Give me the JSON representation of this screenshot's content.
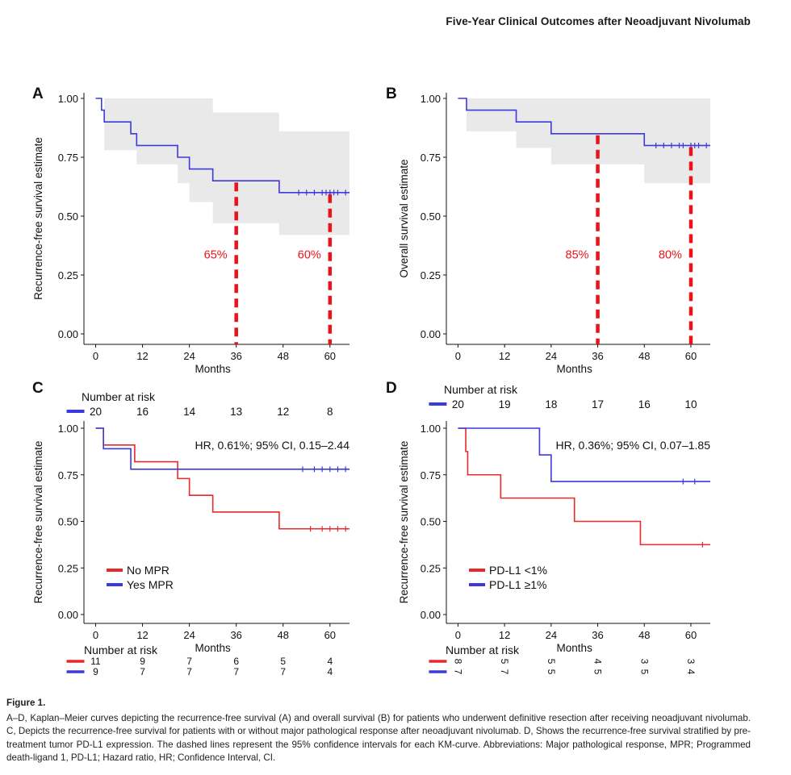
{
  "header": "Five-Year Clinical Outcomes after Neoadjuvant Nivolumab",
  "caption": {
    "figure_label": "Figure 1.",
    "text": "A–D, Kaplan–Meier curves depicting the recurrence-free survival (A) and overall survival (B) for patients who underwent definitive resection after receiving neoadjuvant nivolumab. C, Depicts the recurrence-free survival for patients with or without major pathological response after neoadjuvant nivolumab. D, Shows the recurrence-free survival stratified by pre-treatment tumor PD-L1 expression. The dashed lines represent the 95% confidence intervals for each KM-curve. Abbreviations: Major pathological response, MPR; Programmed death-ligand 1, PD-L1; Hazard ratio, HR; Confidence Interval, CI."
  },
  "colors": {
    "blue": "#3a3ae0",
    "red": "#e8282a",
    "ci": "#e9e9e9",
    "dash": "#e8141a"
  },
  "chart_data": [
    {
      "panel": "A",
      "type": "line",
      "xlabel": "Months",
      "ylabel": "Recurrence-free survival estimate",
      "xticks": [
        0,
        12,
        24,
        36,
        48,
        60
      ],
      "yticks": [
        "0.00",
        "0.25",
        "0.50",
        "0.75",
        "1.00"
      ],
      "xlim": [
        -3,
        65
      ],
      "ylim": [
        0,
        1
      ],
      "series": [
        {
          "color": "blue",
          "steps": [
            [
              0,
              1.0
            ],
            [
              1.5,
              0.95
            ],
            [
              2.2,
              0.9
            ],
            [
              9,
              0.85
            ],
            [
              10.5,
              0.8
            ],
            [
              21,
              0.75
            ],
            [
              24,
              0.7
            ],
            [
              30,
              0.65
            ],
            [
              47,
              0.6
            ],
            [
              65,
              0.6
            ]
          ],
          "censor": [
            52,
            54,
            56,
            58,
            59,
            60,
            61,
            62,
            64
          ],
          "ci_upper": [
            [
              0,
              1.0
            ],
            [
              2.2,
              1.0
            ],
            [
              10.5,
              1.0
            ],
            [
              30,
              0.98
            ],
            [
              30,
              0.94
            ],
            [
              47,
              0.94
            ],
            [
              47,
              0.86
            ],
            [
              65,
              0.86
            ]
          ],
          "ci_lower": [
            [
              0,
              1.0
            ],
            [
              2.2,
              0.78
            ],
            [
              10.5,
              0.72
            ],
            [
              21,
              0.64
            ],
            [
              24,
              0.56
            ],
            [
              30,
              0.47
            ],
            [
              47,
              0.42
            ],
            [
              65,
              0.42
            ]
          ]
        }
      ],
      "markers": [
        {
          "x": 36,
          "y": 0.65,
          "label": "65%"
        },
        {
          "x": 60,
          "y": 0.6,
          "label": "60%"
        }
      ]
    },
    {
      "panel": "B",
      "type": "line",
      "xlabel": "Months",
      "ylabel": "Overall survival estimate",
      "xticks": [
        0,
        12,
        24,
        36,
        48,
        60
      ],
      "yticks": [
        "0.00",
        "0.25",
        "0.50",
        "0.75",
        "1.00"
      ],
      "xlim": [
        -3,
        65
      ],
      "ylim": [
        0,
        1
      ],
      "series": [
        {
          "color": "blue",
          "steps": [
            [
              0,
              1.0
            ],
            [
              2.2,
              0.95
            ],
            [
              15,
              0.9
            ],
            [
              24,
              0.85
            ],
            [
              48,
              0.8
            ],
            [
              65,
              0.8
            ]
          ],
          "censor": [
            51,
            53,
            55,
            57,
            58,
            60,
            61,
            62,
            64
          ],
          "ci_upper": [
            [
              0,
              1.0
            ],
            [
              65,
              1.0
            ]
          ],
          "ci_lower": [
            [
              0,
              1.0
            ],
            [
              2.2,
              0.86
            ],
            [
              15,
              0.79
            ],
            [
              24,
              0.72
            ],
            [
              48,
              0.64
            ],
            [
              65,
              0.64
            ]
          ]
        }
      ],
      "markers": [
        {
          "x": 36,
          "y": 0.85,
          "label": "85%"
        },
        {
          "x": 60,
          "y": 0.8,
          "label": "80%"
        }
      ]
    },
    {
      "panel": "C",
      "type": "line",
      "xlabel": "Months",
      "ylabel": "Recurrence-free survival estimate",
      "xticks": [
        0,
        12,
        24,
        36,
        48,
        60
      ],
      "yticks": [
        "0.00",
        "0.25",
        "0.50",
        "0.75",
        "1.00"
      ],
      "xlim": [
        -3,
        65
      ],
      "ylim": [
        0,
        1
      ],
      "annotation": "HR, 0.61%; 95% CI, 0.15–2.44",
      "risk_top": {
        "title": "Number at risk",
        "values": [
          "20",
          "16",
          "14",
          "13",
          "12",
          "8"
        ]
      },
      "risk_bottom": {
        "title": "Number at risk",
        "rows": [
          {
            "color": "red",
            "values": [
              "11",
              "9",
              "7",
              "6",
              "5",
              "4"
            ]
          },
          {
            "color": "blue",
            "values": [
              "9",
              "7",
              "7",
              "7",
              "7",
              "4"
            ]
          }
        ]
      },
      "legend": [
        {
          "label": "No MPR",
          "color": "red"
        },
        {
          "label": "Yes MPR",
          "color": "blue"
        }
      ],
      "series": [
        {
          "color": "red",
          "steps": [
            [
              0,
              1.0
            ],
            [
              2,
              0.91
            ],
            [
              10,
              0.82
            ],
            [
              21,
              0.73
            ],
            [
              24,
              0.64
            ],
            [
              30,
              0.55
            ],
            [
              47,
              0.46
            ],
            [
              65,
              0.46
            ]
          ],
          "censor": [
            55,
            58,
            60,
            62,
            64
          ]
        },
        {
          "color": "blue",
          "steps": [
            [
              0,
              1.0
            ],
            [
              2,
              0.89
            ],
            [
              9,
              0.78
            ],
            [
              65,
              0.78
            ]
          ],
          "censor": [
            53,
            56,
            58,
            60,
            62,
            64
          ]
        }
      ]
    },
    {
      "panel": "D",
      "type": "line",
      "xlabel": "Months",
      "ylabel": "Recurrence-free survival estimate",
      "xticks": [
        0,
        12,
        24,
        36,
        48,
        60
      ],
      "yticks": [
        "0.00",
        "0.25",
        "0.50",
        "0.75",
        "1.00"
      ],
      "xlim": [
        -3,
        65
      ],
      "ylim": [
        0,
        1
      ],
      "annotation": "HR, 0.36%; 95% CI, 0.07–1.85",
      "risk_top": {
        "title": "Number at risk",
        "values": [
          "20",
          "19",
          "18",
          "17",
          "16",
          "10"
        ]
      },
      "risk_bottom": {
        "title": "Number at risk",
        "rows": [
          {
            "color": "red",
            "values": [
              "8",
              "5",
              "5",
              "4",
              "3",
              "3"
            ]
          },
          {
            "color": "blue",
            "values": [
              "7",
              "7",
              "5",
              "5",
              "5",
              "4"
            ]
          }
        ]
      },
      "legend": [
        {
          "label": "PD-L1 <1%",
          "color": "red"
        },
        {
          "label": "PD-L1 ≥1%",
          "color": "blue"
        }
      ],
      "series": [
        {
          "color": "red",
          "steps": [
            [
              0,
              1.0
            ],
            [
              2,
              0.875
            ],
            [
              2.5,
              0.75
            ],
            [
              11,
              0.625
            ],
            [
              30,
              0.5
            ],
            [
              47,
              0.375
            ],
            [
              65,
              0.375
            ]
          ],
          "censor": [
            63
          ]
        },
        {
          "color": "blue",
          "steps": [
            [
              0,
              1.0
            ],
            [
              21,
              0.857
            ],
            [
              24,
              0.714
            ],
            [
              65,
              0.714
            ]
          ],
          "censor": [
            58,
            61
          ]
        }
      ]
    }
  ]
}
